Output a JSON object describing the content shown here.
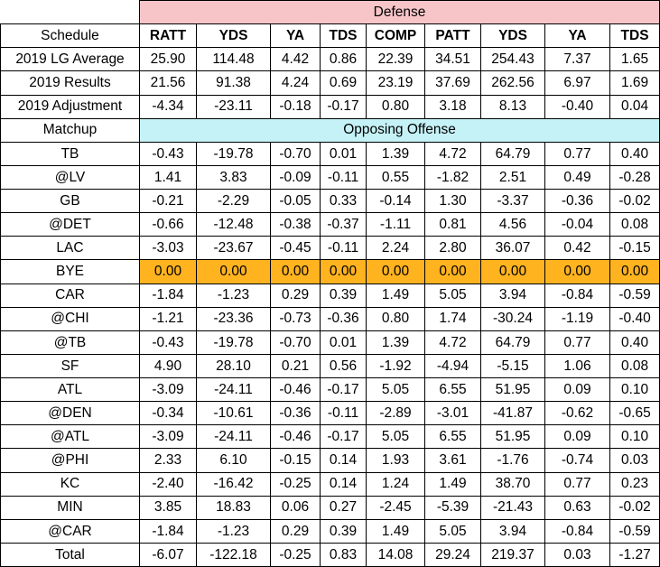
{
  "band_defense": "Defense",
  "band_offense": "Opposing Offense",
  "schedule_label": "Schedule",
  "matchup_label": "Matchup",
  "columns": [
    "RATT",
    "YDS",
    "YA",
    "TDS",
    "COMP",
    "PATT",
    "YDS",
    "YA",
    "TDS"
  ],
  "summary_rows": [
    {
      "label": "2019 LG Average",
      "values": [
        "25.90",
        "114.48",
        "4.42",
        "0.86",
        "22.39",
        "34.51",
        "254.43",
        "7.37",
        "1.65"
      ]
    },
    {
      "label": "2019 Results",
      "values": [
        "21.56",
        "91.38",
        "4.24",
        "0.69",
        "23.19",
        "37.69",
        "262.56",
        "6.97",
        "1.69"
      ]
    },
    {
      "label": "2019 Adjustment",
      "values": [
        "-4.34",
        "-23.11",
        "-0.18",
        "-0.17",
        "0.80",
        "3.18",
        "8.13",
        "-0.40",
        "0.04"
      ]
    }
  ],
  "matchups": [
    {
      "label": "TB",
      "values": [
        "-0.43",
        "-19.78",
        "-0.70",
        "0.01",
        "1.39",
        "4.72",
        "64.79",
        "0.77",
        "0.40"
      ]
    },
    {
      "label": "@LV",
      "values": [
        "1.41",
        "3.83",
        "-0.09",
        "-0.11",
        "0.55",
        "-1.82",
        "2.51",
        "0.49",
        "-0.28"
      ]
    },
    {
      "label": "GB",
      "values": [
        "-0.21",
        "-2.29",
        "-0.05",
        "0.33",
        "-0.14",
        "1.30",
        "-3.37",
        "-0.36",
        "-0.02"
      ]
    },
    {
      "label": "@DET",
      "values": [
        "-0.66",
        "-12.48",
        "-0.38",
        "-0.37",
        "-1.11",
        "0.81",
        "4.56",
        "-0.04",
        "0.08"
      ]
    },
    {
      "label": "LAC",
      "values": [
        "-3.03",
        "-23.67",
        "-0.45",
        "-0.11",
        "2.24",
        "2.80",
        "36.07",
        "0.42",
        "-0.15"
      ]
    },
    {
      "label": "BYE",
      "values": [
        "0.00",
        "0.00",
        "0.00",
        "0.00",
        "0.00",
        "0.00",
        "0.00",
        "0.00",
        "0.00"
      ],
      "highlight": true
    },
    {
      "label": "CAR",
      "values": [
        "-1.84",
        "-1.23",
        "0.29",
        "0.39",
        "1.49",
        "5.05",
        "3.94",
        "-0.84",
        "-0.59"
      ]
    },
    {
      "label": "@CHI",
      "values": [
        "-1.21",
        "-23.36",
        "-0.73",
        "-0.36",
        "0.80",
        "1.74",
        "-30.24",
        "-1.19",
        "-0.40"
      ]
    },
    {
      "label": "@TB",
      "values": [
        "-0.43",
        "-19.78",
        "-0.70",
        "0.01",
        "1.39",
        "4.72",
        "64.79",
        "0.77",
        "0.40"
      ]
    },
    {
      "label": "SF",
      "values": [
        "4.90",
        "28.10",
        "0.21",
        "0.56",
        "-1.92",
        "-4.94",
        "-5.15",
        "1.06",
        "0.08"
      ]
    },
    {
      "label": "ATL",
      "values": [
        "-3.09",
        "-24.11",
        "-0.46",
        "-0.17",
        "5.05",
        "6.55",
        "51.95",
        "0.09",
        "0.10"
      ]
    },
    {
      "label": "@DEN",
      "values": [
        "-0.34",
        "-10.61",
        "-0.36",
        "-0.11",
        "-2.89",
        "-3.01",
        "-41.87",
        "-0.62",
        "-0.65"
      ]
    },
    {
      "label": "@ATL",
      "values": [
        "-3.09",
        "-24.11",
        "-0.46",
        "-0.17",
        "5.05",
        "6.55",
        "51.95",
        "0.09",
        "0.10"
      ]
    },
    {
      "label": "@PHI",
      "values": [
        "2.33",
        "6.10",
        "-0.15",
        "0.14",
        "1.93",
        "3.61",
        "-1.76",
        "-0.74",
        "0.03"
      ]
    },
    {
      "label": "KC",
      "values": [
        "-2.40",
        "-16.42",
        "-0.25",
        "0.14",
        "1.24",
        "1.49",
        "38.70",
        "0.77",
        "0.23"
      ]
    },
    {
      "label": "MIN",
      "values": [
        "3.85",
        "18.83",
        "0.06",
        "0.27",
        "-2.45",
        "-5.39",
        "-21.43",
        "0.63",
        "-0.02"
      ]
    },
    {
      "label": "@CAR",
      "values": [
        "-1.84",
        "-1.23",
        "0.29",
        "0.39",
        "1.49",
        "5.05",
        "3.94",
        "-0.84",
        "-0.59"
      ]
    }
  ],
  "total_row": {
    "label": "Total",
    "values": [
      "-6.07",
      "-122.18",
      "-0.25",
      "0.83",
      "14.08",
      "29.24",
      "219.37",
      "0.03",
      "-1.27"
    ]
  },
  "colors": {
    "defense_band": "#f7c5c8",
    "offense_band": "#c5f2f7",
    "bye_highlight": "#ffb31f"
  }
}
